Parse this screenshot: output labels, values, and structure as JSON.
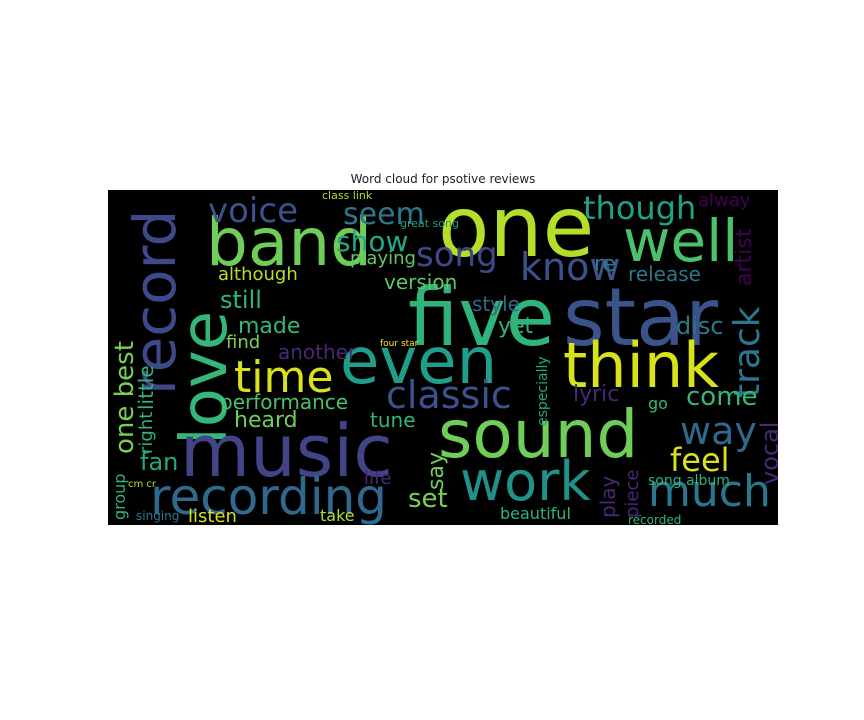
{
  "figure": {
    "title": "Word cloud for psotive reviews",
    "background_color": "#000000",
    "colormap": "viridis",
    "words": [
      {
        "text": "five",
        "color": "#2fb47c"
      },
      {
        "text": "star",
        "color": "#3b528b"
      },
      {
        "text": "one",
        "color": "#b5de2b"
      },
      {
        "text": "band",
        "color": "#6ece58"
      },
      {
        "text": "well",
        "color": "#4ac16d"
      },
      {
        "text": "love",
        "color": "#35b779"
      },
      {
        "text": "record",
        "color": "#3e4989"
      },
      {
        "text": "music",
        "color": "#414487"
      },
      {
        "text": "sound",
        "color": "#6ece58"
      },
      {
        "text": "even",
        "color": "#1f9e89"
      },
      {
        "text": "think",
        "color": "#d8e219"
      },
      {
        "text": "recording",
        "color": "#31688e"
      },
      {
        "text": "work",
        "color": "#21918c"
      },
      {
        "text": "much",
        "color": "#2a788e"
      },
      {
        "text": "time",
        "color": "#d8e219"
      },
      {
        "text": "know",
        "color": "#3b528b"
      },
      {
        "text": "song",
        "color": "#3e4989"
      },
      {
        "text": "voice",
        "color": "#3b528b"
      },
      {
        "text": "seem",
        "color": "#2a788e"
      },
      {
        "text": "though",
        "color": "#1fa187"
      },
      {
        "text": "classic",
        "color": "#3b528b"
      },
      {
        "text": "way",
        "color": "#31688e"
      },
      {
        "text": "show",
        "color": "#22a884"
      },
      {
        "text": "track",
        "color": "#2a788e"
      },
      {
        "text": "vocal",
        "color": "#482878"
      },
      {
        "text": "feel",
        "color": "#d8e219"
      },
      {
        "text": "one best",
        "color": "#7ad151"
      },
      {
        "text": "performance",
        "color": "#4ac16d"
      },
      {
        "text": "release",
        "color": "#2a788e"
      },
      {
        "text": "still",
        "color": "#2fb47c"
      },
      {
        "text": "made",
        "color": "#35b779"
      },
      {
        "text": "version",
        "color": "#5ec962"
      },
      {
        "text": "disc",
        "color": "#2a788e"
      },
      {
        "text": "come",
        "color": "#35b779"
      },
      {
        "text": "lyric",
        "color": "#482878"
      },
      {
        "text": "set",
        "color": "#7ad151"
      },
      {
        "text": "fan",
        "color": "#22a884"
      },
      {
        "text": "heard",
        "color": "#6ece58"
      },
      {
        "text": "tune",
        "color": "#2fb47c"
      },
      {
        "text": "say",
        "color": "#6ece58"
      },
      {
        "text": "yet",
        "color": "#2fb47c"
      },
      {
        "text": "style",
        "color": "#31688e"
      },
      {
        "text": "another",
        "color": "#482878"
      },
      {
        "text": "although",
        "color": "#b5de2b"
      },
      {
        "text": "find",
        "color": "#7ad151"
      },
      {
        "text": "little",
        "color": "#2fb47c"
      },
      {
        "text": "right",
        "color": "#2fb47c"
      },
      {
        "text": "re",
        "color": "#2a788e"
      },
      {
        "text": "artist",
        "color": "#440154"
      },
      {
        "text": "alway",
        "color": "#440154"
      },
      {
        "text": "play",
        "color": "#482878"
      },
      {
        "text": "piece",
        "color": "#482878"
      },
      {
        "text": "listen",
        "color": "#d8e219"
      },
      {
        "text": "beautiful",
        "color": "#2fb47c"
      },
      {
        "text": "playing",
        "color": "#5ec962"
      },
      {
        "text": "life",
        "color": "#482878"
      },
      {
        "text": "take",
        "color": "#b5de2b"
      },
      {
        "text": "go",
        "color": "#35b779"
      },
      {
        "text": "group",
        "color": "#2fb47c"
      },
      {
        "text": "song album",
        "color": "#2fb47c"
      },
      {
        "text": "especially",
        "color": "#22a884"
      },
      {
        "text": "recorded",
        "color": "#35b779"
      },
      {
        "text": "singing",
        "color": "#2a788e"
      },
      {
        "text": "four star",
        "color": "#fde725"
      },
      {
        "text": "class link",
        "color": "#b5de2b"
      },
      {
        "text": "great song",
        "color": "#1f9e89"
      },
      {
        "text": "cm cr",
        "color": "#b5de2b"
      }
    ]
  }
}
